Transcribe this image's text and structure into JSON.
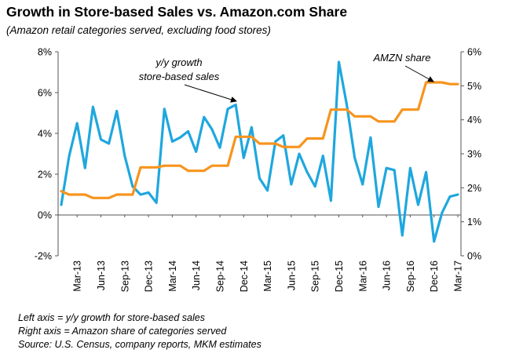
{
  "title": "Growth in Store-based Sales vs. Amazon.com Share",
  "subtitle": "(Amazon retail categories served, excluding food stores)",
  "footnotes": [
    "Left axis = y/y growth for store-based sales",
    "Right axis = Amazon share of categories served",
    "Source: U.S. Census, company reports, MKM estimates"
  ],
  "chart_data": {
    "type": "line",
    "grid": false,
    "legend": "none",
    "x": [
      "Jan-13",
      "Feb-13",
      "Mar-13",
      "Apr-13",
      "May-13",
      "Jun-13",
      "Jul-13",
      "Aug-13",
      "Sep-13",
      "Oct-13",
      "Nov-13",
      "Dec-13",
      "Jan-14",
      "Feb-14",
      "Mar-14",
      "Apr-14",
      "May-14",
      "Jun-14",
      "Jul-14",
      "Aug-14",
      "Sep-14",
      "Oct-14",
      "Nov-14",
      "Dec-14",
      "Jan-15",
      "Feb-15",
      "Mar-15",
      "Apr-15",
      "May-15",
      "Jun-15",
      "Jul-15",
      "Aug-15",
      "Sep-15",
      "Oct-15",
      "Nov-15",
      "Dec-15",
      "Jan-16",
      "Feb-16",
      "Mar-16",
      "Apr-16",
      "May-16",
      "Jun-16",
      "Jul-16",
      "Aug-16",
      "Sep-16",
      "Oct-16",
      "Nov-16",
      "Dec-16",
      "Jan-17",
      "Feb-17",
      "Mar-17"
    ],
    "x_tick_labels": [
      "Mar-13",
      "Jun-13",
      "Sep-13",
      "Dec-13",
      "Mar-14",
      "Jun-14",
      "Sep-14",
      "Dec-14",
      "Mar-15",
      "Jun-15",
      "Sep-15",
      "Dec-15",
      "Mar-16",
      "Jun-16",
      "Sep-16",
      "Dec-16",
      "Mar-17"
    ],
    "left_axis": {
      "ylim": [
        -2,
        8
      ],
      "ticks": [
        "-2%",
        "0%",
        "2%",
        "4%",
        "6%",
        "8%"
      ]
    },
    "right_axis": {
      "ylim": [
        0,
        6
      ],
      "ticks": [
        "0%",
        "1%",
        "2%",
        "3%",
        "4%",
        "5%",
        "6%"
      ]
    },
    "series": [
      {
        "axis": "left",
        "color": "#1FA7DE",
        "values": [
          0.5,
          2.9,
          4.5,
          2.3,
          5.3,
          3.7,
          3.5,
          5.1,
          2.9,
          1.4,
          1.0,
          1.1,
          0.6,
          5.2,
          3.6,
          3.8,
          4.1,
          3.1,
          4.8,
          4.2,
          3.3,
          5.2,
          5.4,
          2.8,
          4.3,
          1.8,
          1.2,
          3.6,
          3.9,
          1.5,
          3.0,
          2.1,
          1.4,
          2.9,
          0.7,
          7.5,
          5.4,
          2.8,
          1.5,
          3.8,
          0.4,
          2.3,
          2.2,
          -1.0,
          2.3,
          0.5,
          2.1,
          -1.3,
          0.1,
          0.9,
          1.0
        ]
      },
      {
        "axis": "right",
        "color": "#F7941D",
        "values": [
          1.9,
          1.8,
          1.8,
          1.8,
          1.7,
          1.7,
          1.7,
          1.8,
          1.8,
          1.8,
          2.6,
          2.6,
          2.6,
          2.65,
          2.65,
          2.65,
          2.5,
          2.5,
          2.5,
          2.65,
          2.65,
          2.65,
          3.5,
          3.5,
          3.5,
          3.3,
          3.3,
          3.3,
          3.2,
          3.2,
          3.2,
          3.45,
          3.45,
          3.45,
          4.3,
          4.3,
          4.3,
          4.1,
          4.1,
          4.1,
          3.95,
          3.95,
          3.95,
          4.3,
          4.3,
          4.3,
          5.1,
          5.1,
          5.1,
          5.05,
          5.05
        ]
      }
    ],
    "annotations": [
      {
        "text": [
          "y/y growth",
          "store-based sales"
        ],
        "target_series": 0
      },
      {
        "text": [
          "AMZN share"
        ],
        "target_series": 1
      }
    ]
  }
}
